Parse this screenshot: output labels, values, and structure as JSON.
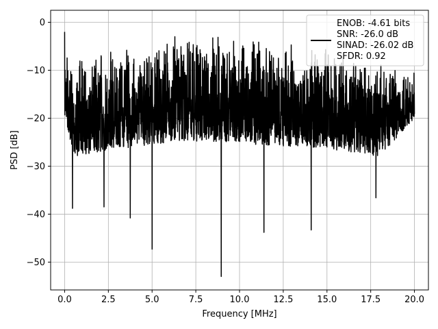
{
  "chart_data": {
    "type": "line",
    "title": "",
    "xlabel": "Frequency [MHz]",
    "ylabel": "PSD [dB]",
    "xlim": [
      -0.8,
      20.8
    ],
    "ylim": [
      -55.8,
      2.5
    ],
    "xticks": [
      0.0,
      2.5,
      5.0,
      7.5,
      10.0,
      12.5,
      15.0,
      17.5,
      20.0
    ],
    "xtick_labels": [
      "0.0",
      "2.5",
      "5.0",
      "7.5",
      "10.0",
      "12.5",
      "15.0",
      "17.5",
      "20.0"
    ],
    "yticks": [
      0,
      -10,
      -20,
      -30,
      -40,
      -50
    ],
    "ytick_labels": [
      "0",
      "−10",
      "−20",
      "−30",
      "−40",
      "−50"
    ],
    "grid": true,
    "legend_position": "top-right",
    "legend": {
      "lines": [
        "ENOB: -4.61 bits",
        "SNR: -26.0 dB",
        "SINAD: -26.02 dB",
        "SFDR: 0.92"
      ]
    },
    "series": [
      {
        "color": "#000000",
        "x_range": [
          0.0,
          20.0
        ],
        "band_upper_profile": [
          [
            0.0,
            -2
          ],
          [
            0.5,
            -8
          ],
          [
            2.0,
            -6
          ],
          [
            4.0,
            -5
          ],
          [
            6.0,
            -4
          ],
          [
            8.0,
            -3
          ],
          [
            10.0,
            -3
          ],
          [
            12.0,
            -4
          ],
          [
            14.0,
            -5
          ],
          [
            16.0,
            -6
          ],
          [
            18.0,
            -8
          ],
          [
            20.0,
            -10
          ]
        ],
        "band_lower_profile": [
          [
            0.0,
            -20
          ],
          [
            0.5,
            -28
          ],
          [
            2.0,
            -27
          ],
          [
            4.0,
            -26
          ],
          [
            6.0,
            -25
          ],
          [
            8.0,
            -25
          ],
          [
            10.0,
            -25
          ],
          [
            12.0,
            -26
          ],
          [
            14.0,
            -26
          ],
          [
            16.0,
            -27
          ],
          [
            18.0,
            -28
          ],
          [
            20.0,
            -20
          ]
        ],
        "notable_points": [
          {
            "x": 0.0,
            "y": -2.0
          },
          {
            "x": 0.45,
            "y": -38.8
          },
          {
            "x": 2.25,
            "y": -38.5
          },
          {
            "x": 3.75,
            "y": -40.8
          },
          {
            "x": 5.0,
            "y": -47.3
          },
          {
            "x": 6.3,
            "y": -3.0
          },
          {
            "x": 8.95,
            "y": -53.0
          },
          {
            "x": 11.4,
            "y": -43.8
          },
          {
            "x": 14.1,
            "y": -43.3
          },
          {
            "x": 17.8,
            "y": -36.6
          }
        ]
      }
    ]
  }
}
